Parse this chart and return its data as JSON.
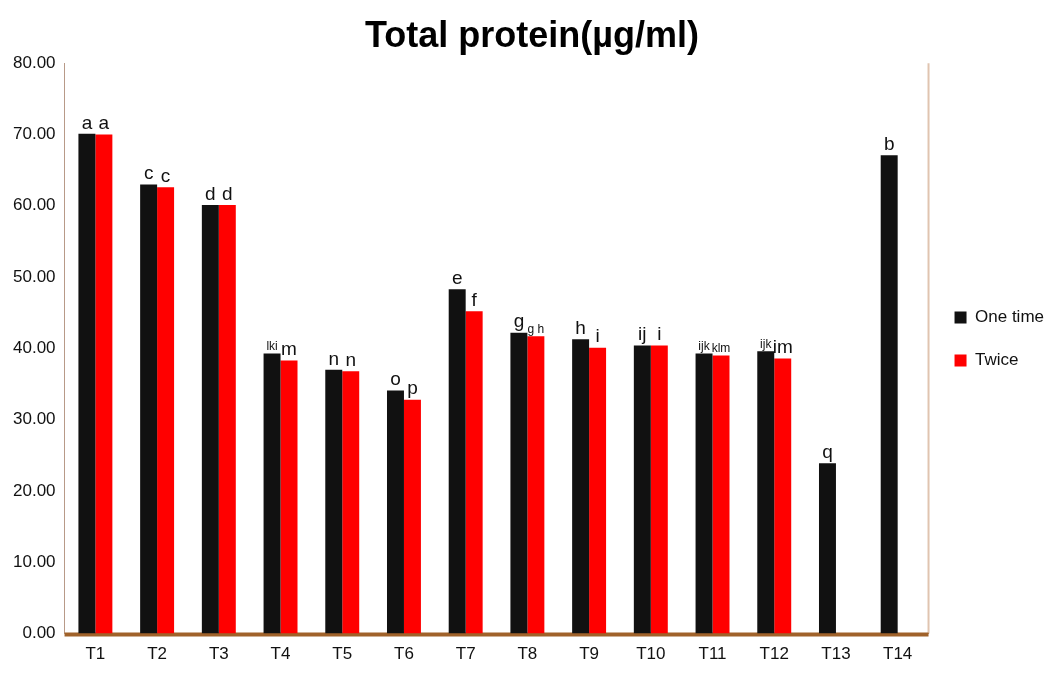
{
  "chart_data": {
    "type": "bar",
    "title": "Total protein(µg/ml)",
    "categories": [
      "T1",
      "T2",
      "T3",
      "T4",
      "T5",
      "T6",
      "T7",
      "T8",
      "T9",
      "T10",
      "T11",
      "T12",
      "T13",
      "T14"
    ],
    "series": [
      {
        "name": "One time",
        "color": "#111111",
        "values": [
          70.1,
          63.0,
          60.1,
          39.3,
          37.0,
          34.1,
          48.3,
          42.2,
          41.3,
          40.4,
          39.3,
          39.6,
          23.9,
          67.1
        ],
        "value_labels": [
          "a",
          "c",
          "d",
          "lki",
          "n",
          "o",
          "e",
          "g",
          "h",
          "ij",
          "ijk",
          "ijk",
          "q",
          "b"
        ]
      },
      {
        "name": "Twice",
        "color": "#ff0000",
        "values": [
          70.0,
          62.6,
          60.1,
          38.3,
          36.8,
          32.8,
          45.2,
          41.7,
          40.1,
          40.4,
          39.0,
          38.6,
          null,
          null
        ],
        "value_labels": [
          "a",
          "c",
          "d",
          "m",
          "n",
          "p",
          "f",
          "g h",
          "i",
          "i",
          "klm",
          "im",
          null,
          null
        ]
      }
    ],
    "ylim": [
      0,
      80
    ],
    "yticks": [
      {
        "value": 0,
        "label": "0.00"
      },
      {
        "value": 10,
        "label": "10.00"
      },
      {
        "value": 20,
        "label": "20.00"
      },
      {
        "value": 30,
        "label": "30.00"
      },
      {
        "value": 40,
        "label": "40.00"
      },
      {
        "value": 50,
        "label": "50.00"
      },
      {
        "value": 60,
        "label": "60.00"
      },
      {
        "value": 70,
        "label": "70.00"
      },
      {
        "value": 80,
        "label": "80.00"
      }
    ],
    "grid": false,
    "legend": "right"
  }
}
